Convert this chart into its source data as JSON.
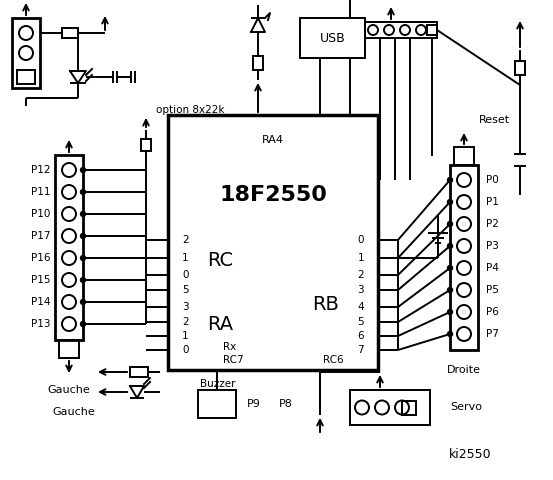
{
  "bg_color": "#ffffff",
  "text_color": "#000000",
  "title": "ki2550",
  "chip_label": "18F2550",
  "ra4_label": "RA4",
  "rc_label": "RC",
  "rb_label": "RB",
  "ra_label": "RA",
  "rx_label": "Rx",
  "rc7_label": "RC7",
  "rc6_label": "RC6",
  "usb_label": "USB",
  "reset_label": "Reset",
  "buzzer_label": "Buzzer",
  "servo_label": "Servo",
  "p8_label": "P8",
  "p9_label": "P9",
  "option_label": "option 8x22k",
  "left_label": "Gauche",
  "right_label": "Droite",
  "left_pins": [
    "P12",
    "P11",
    "P10",
    "P17",
    "P16",
    "P15",
    "P14",
    "P13"
  ],
  "right_pins": [
    "P0",
    "P1",
    "P2",
    "P3",
    "P4",
    "P5",
    "P6",
    "P7"
  ],
  "rc_nums": [
    "2",
    "1",
    "0"
  ],
  "ra_nums": [
    "5",
    "3",
    "2",
    "1",
    "0"
  ],
  "rb_nums": [
    "0",
    "1",
    "2",
    "3",
    "4",
    "5",
    "6",
    "7"
  ]
}
